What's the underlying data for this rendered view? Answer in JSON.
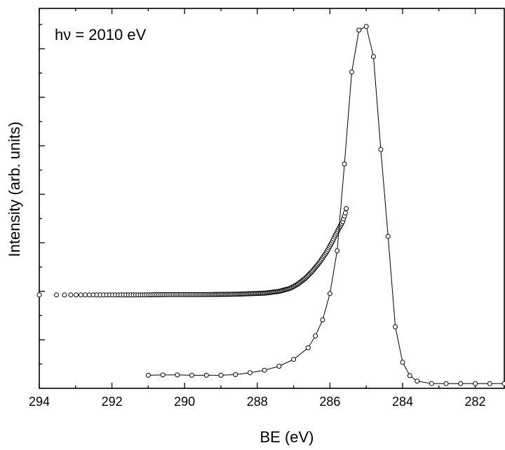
{
  "chart_data": {
    "type": "scatter",
    "title": "",
    "xlabel": "BE (eV)",
    "ylabel": "Intensity (arb. units)",
    "annotation": "hν = 2010 eV",
    "xlim": [
      294,
      281.2
    ],
    "ylim": [
      0,
      1.05
    ],
    "x_reversed": true,
    "grid": false,
    "x_ticks": [
      294,
      292,
      290,
      288,
      286,
      284,
      282
    ],
    "series": [
      {
        "style": "open-circles",
        "x": [
          294.0,
          293.1,
          292.2,
          291.3,
          290.4,
          289.5,
          288.6,
          287.8,
          287.4,
          287.1,
          286.9,
          286.7,
          286.5,
          286.3,
          286.1,
          285.95,
          285.85,
          285.75,
          285.65,
          285.58,
          285.55
        ],
        "y": [
          0.258,
          0.258,
          0.258,
          0.258,
          0.259,
          0.259,
          0.26,
          0.263,
          0.268,
          0.276,
          0.287,
          0.302,
          0.322,
          0.346,
          0.375,
          0.402,
          0.423,
          0.442,
          0.46,
          0.482,
          0.497
        ]
      },
      {
        "style": "open-circles-line",
        "x": [
          291.0,
          290.6,
          290.2,
          289.8,
          289.4,
          289.0,
          288.6,
          288.2,
          287.8,
          287.4,
          287.0,
          286.6,
          286.4,
          286.2,
          286.0,
          285.8,
          285.6,
          285.4,
          285.2,
          285.0,
          284.8,
          284.6,
          284.4,
          284.2,
          284.0,
          283.8,
          283.6,
          283.2,
          282.8,
          282.4,
          282.0,
          281.6,
          281.2
        ],
        "y": [
          0.036,
          0.037,
          0.037,
          0.036,
          0.036,
          0.036,
          0.038,
          0.043,
          0.05,
          0.061,
          0.08,
          0.112,
          0.145,
          0.189,
          0.262,
          0.38,
          0.62,
          0.874,
          0.99,
          1.0,
          0.917,
          0.66,
          0.42,
          0.17,
          0.072,
          0.035,
          0.02,
          0.013,
          0.013,
          0.013,
          0.013,
          0.013,
          0.013
        ]
      }
    ]
  }
}
